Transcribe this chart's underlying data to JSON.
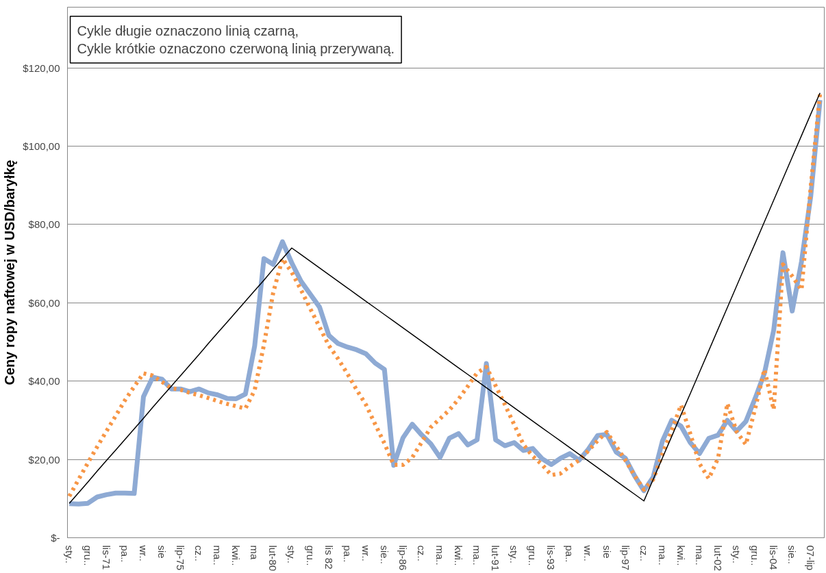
{
  "chart_data": {
    "type": "line",
    "ylabel": "Ceny ropy naftowej w USD/baryłkę",
    "annotations": [
      "Cykle długie oznaczono linią czarną,\nCykle krótkie oznaczono czerwoną linią przerywaną."
    ],
    "categories": [
      "sty..",
      null,
      "gru..",
      null,
      "lis-71",
      null,
      "pa..",
      null,
      "wr..",
      null,
      "sie",
      null,
      "lip-75",
      null,
      "cz..",
      null,
      "ma..",
      null,
      "kwi..",
      null,
      "ma",
      null,
      "lut-80",
      null,
      "sty..",
      null,
      "gru..",
      null,
      "lis 82",
      null,
      "pa..",
      null,
      "wr..",
      null,
      "sie..",
      null,
      "lip-86",
      null,
      "cz..",
      null,
      "ma..",
      null,
      "kwi..",
      null,
      "ma..",
      null,
      "lut-91",
      null,
      "sty..",
      null,
      "gru..",
      null,
      "lis-93",
      null,
      "pa..",
      null,
      "wr..",
      null,
      "sie",
      null,
      "lip-97",
      null,
      "cz..",
      null,
      "ma..",
      null,
      "kwi..",
      null,
      "ma..",
      null,
      "lut-02",
      null,
      "sty..",
      null,
      "gru..",
      null,
      "lis-04",
      null,
      "sie..",
      null,
      "07-lip",
      null
    ],
    "ylim": [
      0,
      135.5
    ],
    "yticks": [
      {
        "value": 0,
        "label": "$-"
      },
      {
        "value": 20,
        "label": "$20,00"
      },
      {
        "value": 40,
        "label": "$40,00"
      },
      {
        "value": 60,
        "label": "$60,00"
      },
      {
        "value": 80,
        "label": "$80,00"
      },
      {
        "value": 100,
        "label": "$100,00"
      },
      {
        "value": 120,
        "label": "$120,00"
      }
    ],
    "grid": "y",
    "series": [
      {
        "color": "#8eaad4",
        "line_style": "solid",
        "values": [
          8.7,
          8.6,
          8.8,
          10.4,
          11.0,
          11.4,
          11.4,
          11.3,
          36.0,
          41.0,
          40.5,
          38.0,
          38.0,
          37.3,
          38.0,
          37.0,
          36.5,
          35.6,
          35.5,
          36.7,
          49.0,
          71.3,
          69.8,
          75.6,
          70.2,
          65.5,
          62.2,
          58.9,
          51.7,
          49.6,
          48.7,
          48.0,
          47.0,
          44.6,
          43.0,
          18.5,
          25.5,
          29.0,
          26.3,
          24.0,
          20.5,
          25.4,
          26.6,
          23.7,
          25.0,
          44.5,
          25.0,
          23.5,
          24.3,
          22.3,
          22.8,
          20.2,
          18.7,
          20.3,
          21.5,
          19.8,
          22.6,
          26.1,
          26.4,
          21.9,
          20.3,
          15.8,
          12.0,
          15.5,
          24.7,
          30.0,
          28.5,
          24.3,
          21.5,
          25.4,
          26.2,
          30.0,
          27.2,
          29.7,
          35.6,
          42.0,
          53.0,
          72.8,
          57.9,
          70.5,
          87.2,
          111.8
        ]
      },
      {
        "color": "#f79646",
        "line_style": "dotted",
        "values": [
          10.6,
          14.9,
          19.1,
          23.2,
          27.2,
          31.1,
          35.1,
          38.6,
          42.0,
          41.4,
          39.8,
          38.2,
          37.8,
          37.0,
          36.4,
          35.7,
          34.9,
          34.2,
          33.6,
          33.0,
          37.7,
          49.3,
          62.6,
          71.3,
          67.8,
          63.3,
          58.5,
          53.8,
          49.1,
          45.7,
          41.9,
          37.8,
          34.0,
          29.0,
          24.1,
          18.6,
          18.6,
          20.5,
          24.3,
          28.2,
          30.4,
          32.6,
          35.4,
          38.7,
          42.1,
          43.6,
          38.8,
          34.0,
          28.9,
          23.8,
          20.8,
          18.7,
          16.0,
          16.4,
          18.2,
          19.8,
          22.2,
          24.8,
          27.0,
          23.4,
          19.8,
          15.8,
          12.3,
          14.9,
          21.4,
          27.4,
          33.9,
          26.6,
          18.9,
          15.1,
          20.3,
          34.3,
          27.1,
          23.8,
          33.0,
          43.0,
          32.7,
          69.8,
          66.8,
          63.3,
          89.6,
          113.6
        ]
      },
      {
        "color": "#000000",
        "line_style": "solid",
        "values": [
          8.8,
          11.5,
          14.2,
          17.0,
          19.7,
          22.4,
          25.1,
          27.8,
          30.5,
          33.3,
          36.0,
          38.7,
          41.4,
          44.1,
          46.8,
          49.6,
          52.3,
          55.0,
          57.7,
          60.4,
          63.1,
          65.8,
          68.6,
          71.3,
          74.0,
          72.3,
          70.6,
          68.9,
          67.2,
          65.5,
          63.8,
          62.1,
          60.4,
          58.7,
          57.0,
          55.3,
          53.6,
          51.9,
          50.2,
          48.5,
          46.8,
          45.1,
          43.4,
          41.7,
          40.0,
          38.3,
          36.6,
          34.9,
          33.2,
          31.5,
          29.8,
          28.1,
          26.4,
          24.7,
          23.0,
          21.3,
          19.6,
          17.9,
          16.2,
          14.5,
          12.8,
          11.1,
          9.4,
          14.9,
          20.4,
          25.9,
          31.4,
          36.8,
          42.3,
          47.8,
          53.3,
          58.8,
          64.3,
          69.8,
          75.2,
          80.7,
          86.2,
          91.7,
          97.2,
          102.7,
          108.2,
          113.6
        ]
      }
    ]
  }
}
